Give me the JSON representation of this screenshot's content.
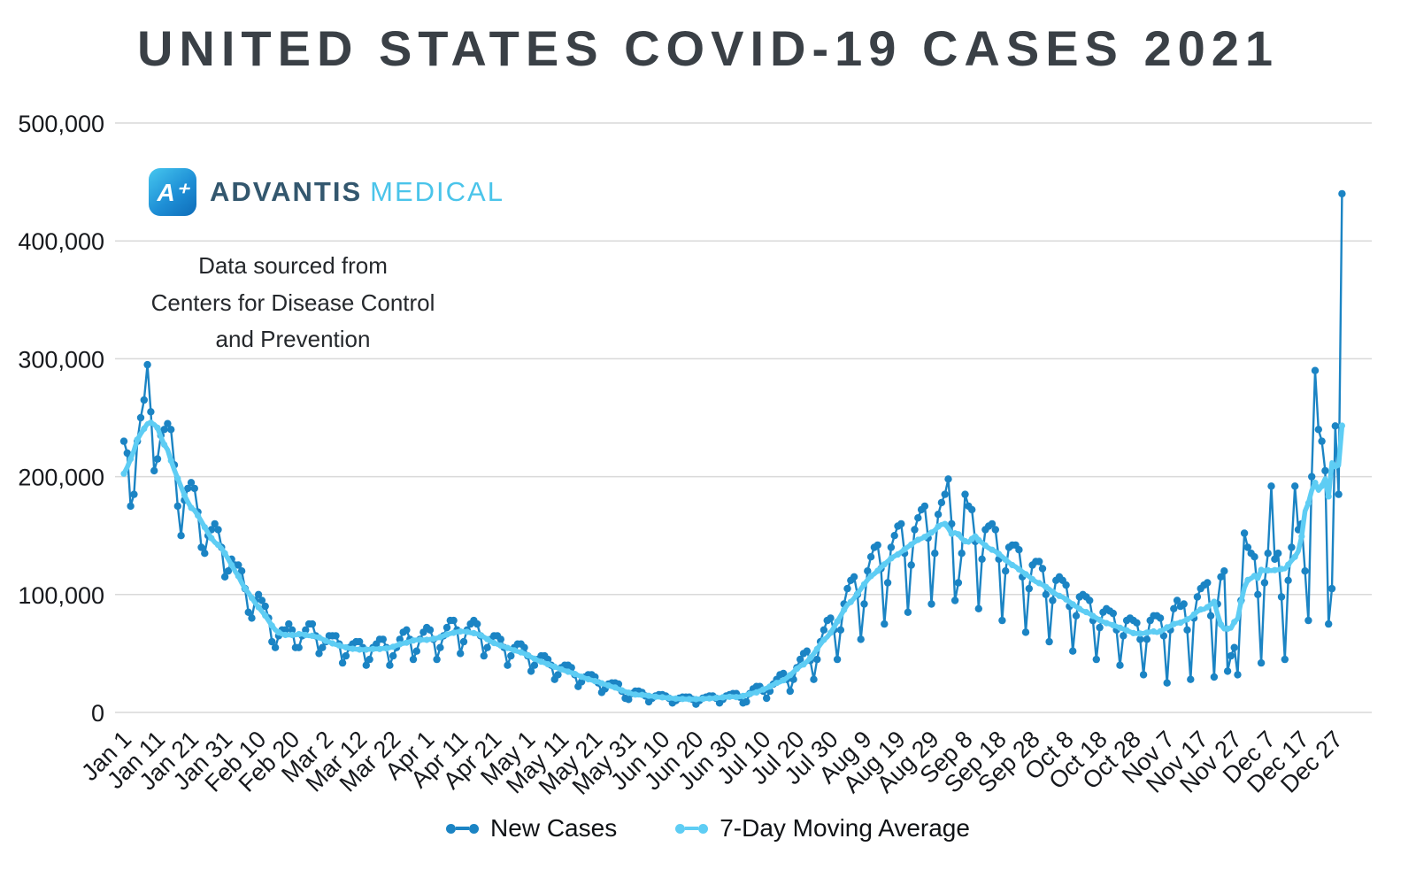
{
  "title": "UNITED STATES COVID-19 CASES 2021",
  "logo": {
    "icon_glyph": "A⁺",
    "primary": "ADVANTIS",
    "secondary": "MEDICAL"
  },
  "source_note": {
    "line1": "Data sourced from",
    "line2": "Centers for Disease Control",
    "line3": "and Prevention"
  },
  "chart_data": {
    "type": "line",
    "title": "UNITED STATES COVID-19 CASES 2021",
    "x_unit": "date (daily, Jan 1 – Dec 29, 2021)",
    "x_tick_interval_days": 10,
    "x_tick_labels": [
      "Jan 1",
      "Jan 11",
      "Jan 21",
      "Jan 31",
      "Feb 10",
      "Feb 20",
      "Mar 2",
      "Mar 12",
      "Mar 22",
      "Apr 1",
      "Apr 11",
      "Apr 21",
      "May 1",
      "May 11",
      "May 21",
      "May 31",
      "Jun 10",
      "Jun 20",
      "Jun 30",
      "Jul 10",
      "Jul 20",
      "Jul 30",
      "Aug 9",
      "Aug 19",
      "Aug 29",
      "Sep 8",
      "Sep 18",
      "Sep 28",
      "Oct 8",
      "Oct 18",
      "Oct 28",
      "Nov 7",
      "Nov 17",
      "Nov 27",
      "Dec 7",
      "Dec 17",
      "Dec 27"
    ],
    "y_tick_values": [
      0,
      100000,
      200000,
      300000,
      400000,
      500000
    ],
    "y_tick_labels": [
      "0",
      "100,000",
      "200,000",
      "300,000",
      "400,000",
      "500,000"
    ],
    "ylim": [
      0,
      500000
    ],
    "grid": "horizontal",
    "legend_position": "bottom-center",
    "series": [
      {
        "name": "New Cases",
        "color": "#1b84c4",
        "marker": "circle",
        "values": [
          230000,
          220000,
          175000,
          185000,
          230000,
          250000,
          265000,
          295000,
          255000,
          205000,
          215000,
          235000,
          240000,
          245000,
          240000,
          210000,
          175000,
          150000,
          180000,
          190000,
          195000,
          190000,
          170000,
          140000,
          135000,
          150000,
          155000,
          160000,
          155000,
          140000,
          115000,
          120000,
          130000,
          125000,
          125000,
          120000,
          105000,
          85000,
          80000,
          95000,
          100000,
          95000,
          90000,
          80000,
          60000,
          55000,
          65000,
          70000,
          70000,
          75000,
          70000,
          55000,
          55000,
          65000,
          70000,
          75000,
          75000,
          65000,
          50000,
          55000,
          60000,
          65000,
          65000,
          65000,
          58000,
          42000,
          48000,
          55000,
          58000,
          60000,
          60000,
          55000,
          40000,
          45000,
          55000,
          58000,
          62000,
          62000,
          55000,
          40000,
          48000,
          55000,
          62000,
          68000,
          70000,
          62000,
          45000,
          52000,
          62000,
          68000,
          72000,
          70000,
          62000,
          45000,
          55000,
          65000,
          72000,
          78000,
          78000,
          70000,
          50000,
          60000,
          70000,
          75000,
          78000,
          75000,
          65000,
          48000,
          55000,
          62000,
          65000,
          65000,
          62000,
          55000,
          40000,
          48000,
          55000,
          58000,
          58000,
          55000,
          48000,
          35000,
          40000,
          45000,
          48000,
          48000,
          45000,
          40000,
          28000,
          32000,
          38000,
          40000,
          40000,
          38000,
          32000,
          22000,
          26000,
          30000,
          32000,
          32000,
          30000,
          25000,
          17000,
          20000,
          24000,
          25000,
          25000,
          24000,
          18000,
          12000,
          11000,
          16000,
          18000,
          18000,
          17000,
          14000,
          9000,
          12000,
          14000,
          15000,
          15000,
          14000,
          12000,
          8000,
          10000,
          12000,
          13000,
          13000,
          13000,
          11000,
          7000,
          10000,
          12000,
          13000,
          14000,
          14000,
          12000,
          8000,
          11000,
          14000,
          15000,
          16000,
          16000,
          13000,
          8000,
          9000,
          16000,
          20000,
          22000,
          22000,
          18000,
          12000,
          18000,
          24000,
          28000,
          32000,
          33000,
          28000,
          18000,
          28000,
          38000,
          45000,
          50000,
          52000,
          44000,
          28000,
          45000,
          60000,
          70000,
          78000,
          80000,
          70000,
          45000,
          70000,
          92000,
          105000,
          112000,
          115000,
          100000,
          62000,
          92000,
          120000,
          132000,
          140000,
          142000,
          122000,
          75000,
          110000,
          140000,
          150000,
          158000,
          160000,
          135000,
          85000,
          125000,
          155000,
          165000,
          172000,
          175000,
          148000,
          92000,
          135000,
          168000,
          178000,
          185000,
          198000,
          160000,
          95000,
          110000,
          135000,
          185000,
          175000,
          172000,
          145000,
          88000,
          130000,
          155000,
          158000,
          160000,
          155000,
          130000,
          78000,
          120000,
          140000,
          142000,
          142000,
          138000,
          115000,
          68000,
          105000,
          125000,
          128000,
          128000,
          122000,
          100000,
          60000,
          95000,
          112000,
          115000,
          112000,
          108000,
          90000,
          52000,
          82000,
          98000,
          100000,
          98000,
          95000,
          78000,
          45000,
          72000,
          85000,
          88000,
          86000,
          84000,
          70000,
          40000,
          65000,
          78000,
          80000,
          78000,
          76000,
          62000,
          32000,
          62000,
          78000,
          82000,
          82000,
          80000,
          65000,
          25000,
          70000,
          88000,
          95000,
          90000,
          92000,
          70000,
          28000,
          80000,
          98000,
          105000,
          108000,
          110000,
          82000,
          30000,
          92000,
          115000,
          120000,
          35000,
          48000,
          55000,
          32000,
          95000,
          152000,
          140000,
          135000,
          132000,
          100000,
          42000,
          110000,
          135000,
          192000,
          130000,
          135000,
          98000,
          45000,
          112000,
          140000,
          192000,
          155000,
          160000,
          120000,
          78000,
          200000,
          290000,
          240000,
          230000,
          205000,
          75000,
          105000,
          243000,
          185000,
          440000
        ]
      },
      {
        "name": "7-Day Moving Average",
        "color": "#5ecdf4",
        "marker": "circle",
        "derived_from": "New Cases",
        "window": 7
      }
    ]
  }
}
